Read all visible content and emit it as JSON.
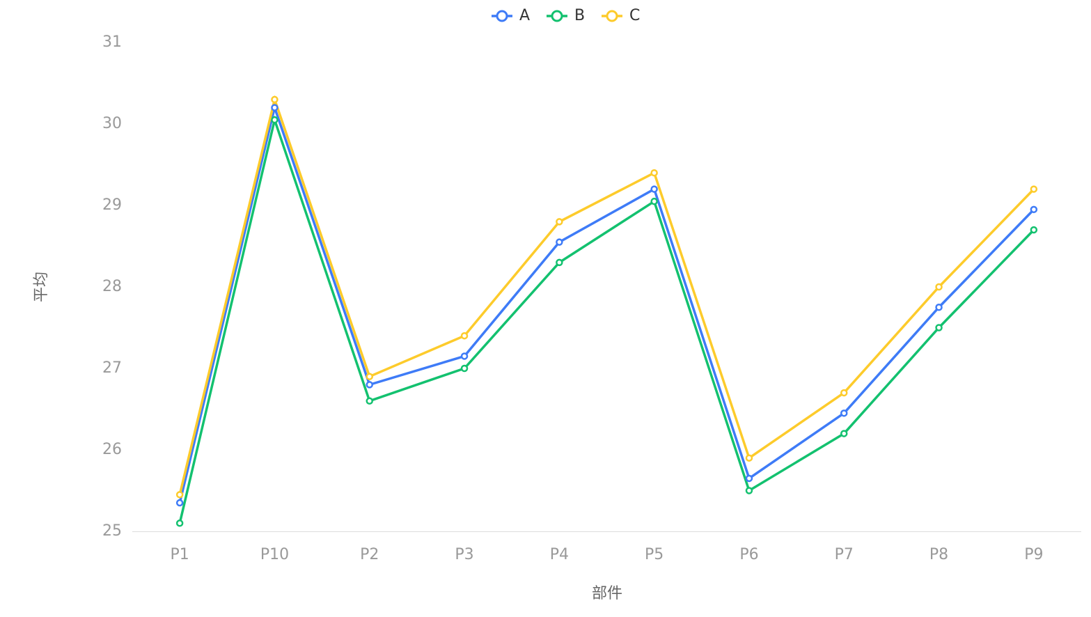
{
  "chart_data": {
    "type": "line",
    "categories": [
      "P1",
      "P10",
      "P2",
      "P3",
      "P4",
      "P5",
      "P6",
      "P7",
      "P8",
      "P9"
    ],
    "series": [
      {
        "name": "A",
        "color": "#3e7bf7",
        "values": [
          25.35,
          30.2,
          26.8,
          27.15,
          28.55,
          29.2,
          25.65,
          26.45,
          27.75,
          28.95
        ]
      },
      {
        "name": "B",
        "color": "#13c16f",
        "values": [
          25.1,
          30.05,
          26.6,
          27.0,
          28.3,
          29.05,
          25.5,
          26.2,
          27.5,
          28.7
        ]
      },
      {
        "name": "C",
        "color": "#fdcb2b",
        "values": [
          25.45,
          30.3,
          26.9,
          27.4,
          28.8,
          29.4,
          25.9,
          26.7,
          28.0,
          29.2
        ]
      }
    ],
    "x_label": "部件",
    "y_label": "平均",
    "ylim": [
      25,
      31
    ],
    "yticks": [
      25,
      26,
      27,
      28,
      29,
      30,
      31
    ],
    "grid": false,
    "legend": "top"
  }
}
